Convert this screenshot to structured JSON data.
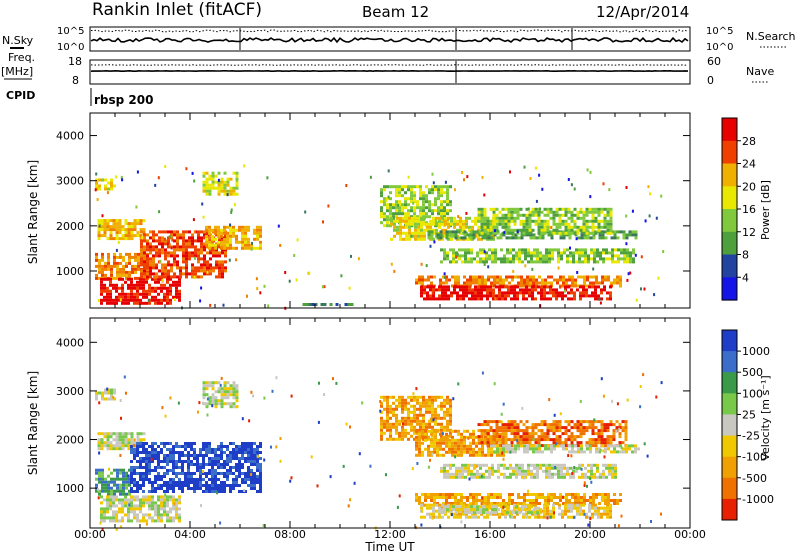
{
  "header": {
    "station": "Rankin Inlet (fitACF)",
    "beam": "Beam 12",
    "date": "12/Apr/2014"
  },
  "summary_panel": {
    "left_labels": {
      "nsky": "N.Sky",
      "freq": "Freq.",
      "freq_unit": "[MHz]",
      "cpid": "CPID"
    },
    "right_labels": {
      "nsearch": "N.Search",
      "nave": "Nave"
    },
    "nsky_ticks": [
      "10^5",
      "10^0"
    ],
    "nsearch_ticks": [
      "10^5",
      "10^0"
    ],
    "freq_ticks": [
      "18",
      "8"
    ],
    "nave_ticks": [
      "60",
      "0"
    ],
    "cpid_text": "rbsp 200"
  },
  "chart_data": [
    {
      "type": "heatmap",
      "name": "Power",
      "ylabel": "Slant Range [km]",
      "ylim": [
        180,
        4500
      ],
      "yticks": [
        1000,
        2000,
        3000,
        4000
      ],
      "xlim": [
        0,
        24
      ],
      "colorbar": {
        "label": "Power [dB]",
        "ticks": [
          "4",
          "8",
          "12",
          "16",
          "20",
          "24",
          "28"
        ]
      },
      "colors": [
        "#1414e6",
        "#2244a0",
        "#3a7a5a",
        "#4ea03c",
        "#80c83c",
        "#e8e800",
        "#f0b000",
        "#f08000",
        "#f04000",
        "#e60000"
      ],
      "bands": [
        {
          "x": [
            0.2,
            1.0
          ],
          "y": [
            2850,
            3050
          ],
          "level": 5
        },
        {
          "x": [
            0.3,
            2.2
          ],
          "y": [
            1750,
            2150
          ],
          "level": 6
        },
        {
          "x": [
            0.2,
            2.3
          ],
          "y": [
            850,
            1400
          ],
          "level": 7
        },
        {
          "x": [
            0.4,
            3.6
          ],
          "y": [
            300,
            850
          ],
          "level": 9
        },
        {
          "x": [
            2.0,
            5.4
          ],
          "y": [
            900,
            1900
          ],
          "level": 8
        },
        {
          "x": [
            4.5,
            5.9
          ],
          "y": [
            2700,
            3200
          ],
          "level": 5
        },
        {
          "x": [
            4.6,
            6.8
          ],
          "y": [
            1500,
            2000
          ],
          "level": 6
        },
        {
          "x": [
            11.6,
            14.4
          ],
          "y": [
            2000,
            2900
          ],
          "level": 4
        },
        {
          "x": [
            12.0,
            16.2
          ],
          "y": [
            1700,
            2200
          ],
          "level": 5
        },
        {
          "x": [
            13.5,
            21.8
          ],
          "y": [
            1750,
            1900
          ],
          "level": 3
        },
        {
          "x": [
            14.0,
            21.8
          ],
          "y": [
            1200,
            1500
          ],
          "level": 4
        },
        {
          "x": [
            15.5,
            20.8
          ],
          "y": [
            1850,
            2400
          ],
          "level": 4
        },
        {
          "x": [
            13.0,
            21.2
          ],
          "y": [
            700,
            900
          ],
          "level": 7
        },
        {
          "x": [
            13.2,
            20.8
          ],
          "y": [
            400,
            680
          ],
          "level": 9
        },
        {
          "x": [
            8.5,
            10.5
          ],
          "y": [
            230,
            290
          ],
          "level": 2
        }
      ]
    },
    {
      "type": "heatmap",
      "name": "Velocity",
      "ylabel": "Slant Range [km]",
      "ylim": [
        180,
        4500
      ],
      "yticks": [
        1000,
        2000,
        3000,
        4000
      ],
      "xlim": [
        0,
        24
      ],
      "colorbar": {
        "label": "Velocity [m s⁻¹]",
        "ticks": [
          "1000",
          "500",
          "100",
          "25",
          "-25",
          "-100",
          "-500",
          "-1000"
        ]
      },
      "colors": [
        "#1e3ec8",
        "#3a6ec8",
        "#3a9a4a",
        "#78c84a",
        "#c8c8c0",
        "#f0c800",
        "#f0a000",
        "#f07000",
        "#e62000"
      ],
      "bands": [
        {
          "x": [
            0.2,
            1.0
          ],
          "y": [
            2850,
            3050
          ],
          "level": 4
        },
        {
          "x": [
            0.3,
            2.2
          ],
          "y": [
            1800,
            2150
          ],
          "level": 4
        },
        {
          "x": [
            0.2,
            1.6
          ],
          "y": [
            850,
            1400
          ],
          "level": 2
        },
        {
          "x": [
            0.4,
            3.6
          ],
          "y": [
            300,
            850
          ],
          "level": 4
        },
        {
          "x": [
            1.6,
            6.8
          ],
          "y": [
            950,
            1950
          ],
          "level": 0
        },
        {
          "x": [
            4.5,
            5.9
          ],
          "y": [
            2700,
            3200
          ],
          "level": 4
        },
        {
          "x": [
            11.6,
            14.4
          ],
          "y": [
            2000,
            2900
          ],
          "level": 6
        },
        {
          "x": [
            13.0,
            16.5
          ],
          "y": [
            1700,
            2200
          ],
          "level": 6
        },
        {
          "x": [
            15.5,
            21.5
          ],
          "y": [
            1850,
            2400
          ],
          "level": 7
        },
        {
          "x": [
            16.0,
            22.0
          ],
          "y": [
            1750,
            1900
          ],
          "level": 4
        },
        {
          "x": [
            14.0,
            21.0
          ],
          "y": [
            1200,
            1500
          ],
          "level": 4
        },
        {
          "x": [
            13.0,
            21.2
          ],
          "y": [
            700,
            900
          ],
          "level": 6
        },
        {
          "x": [
            13.2,
            20.8
          ],
          "y": [
            400,
            680
          ],
          "level": 5
        },
        {
          "x": [
            14.0,
            18.0
          ],
          "y": [
            500,
            650
          ],
          "level": 4
        }
      ]
    }
  ],
  "x_axis": {
    "ticks": [
      "00:00",
      "04:00",
      "08:00",
      "12:00",
      "16:00",
      "20:00",
      "00:00"
    ],
    "label": "Time UT"
  }
}
